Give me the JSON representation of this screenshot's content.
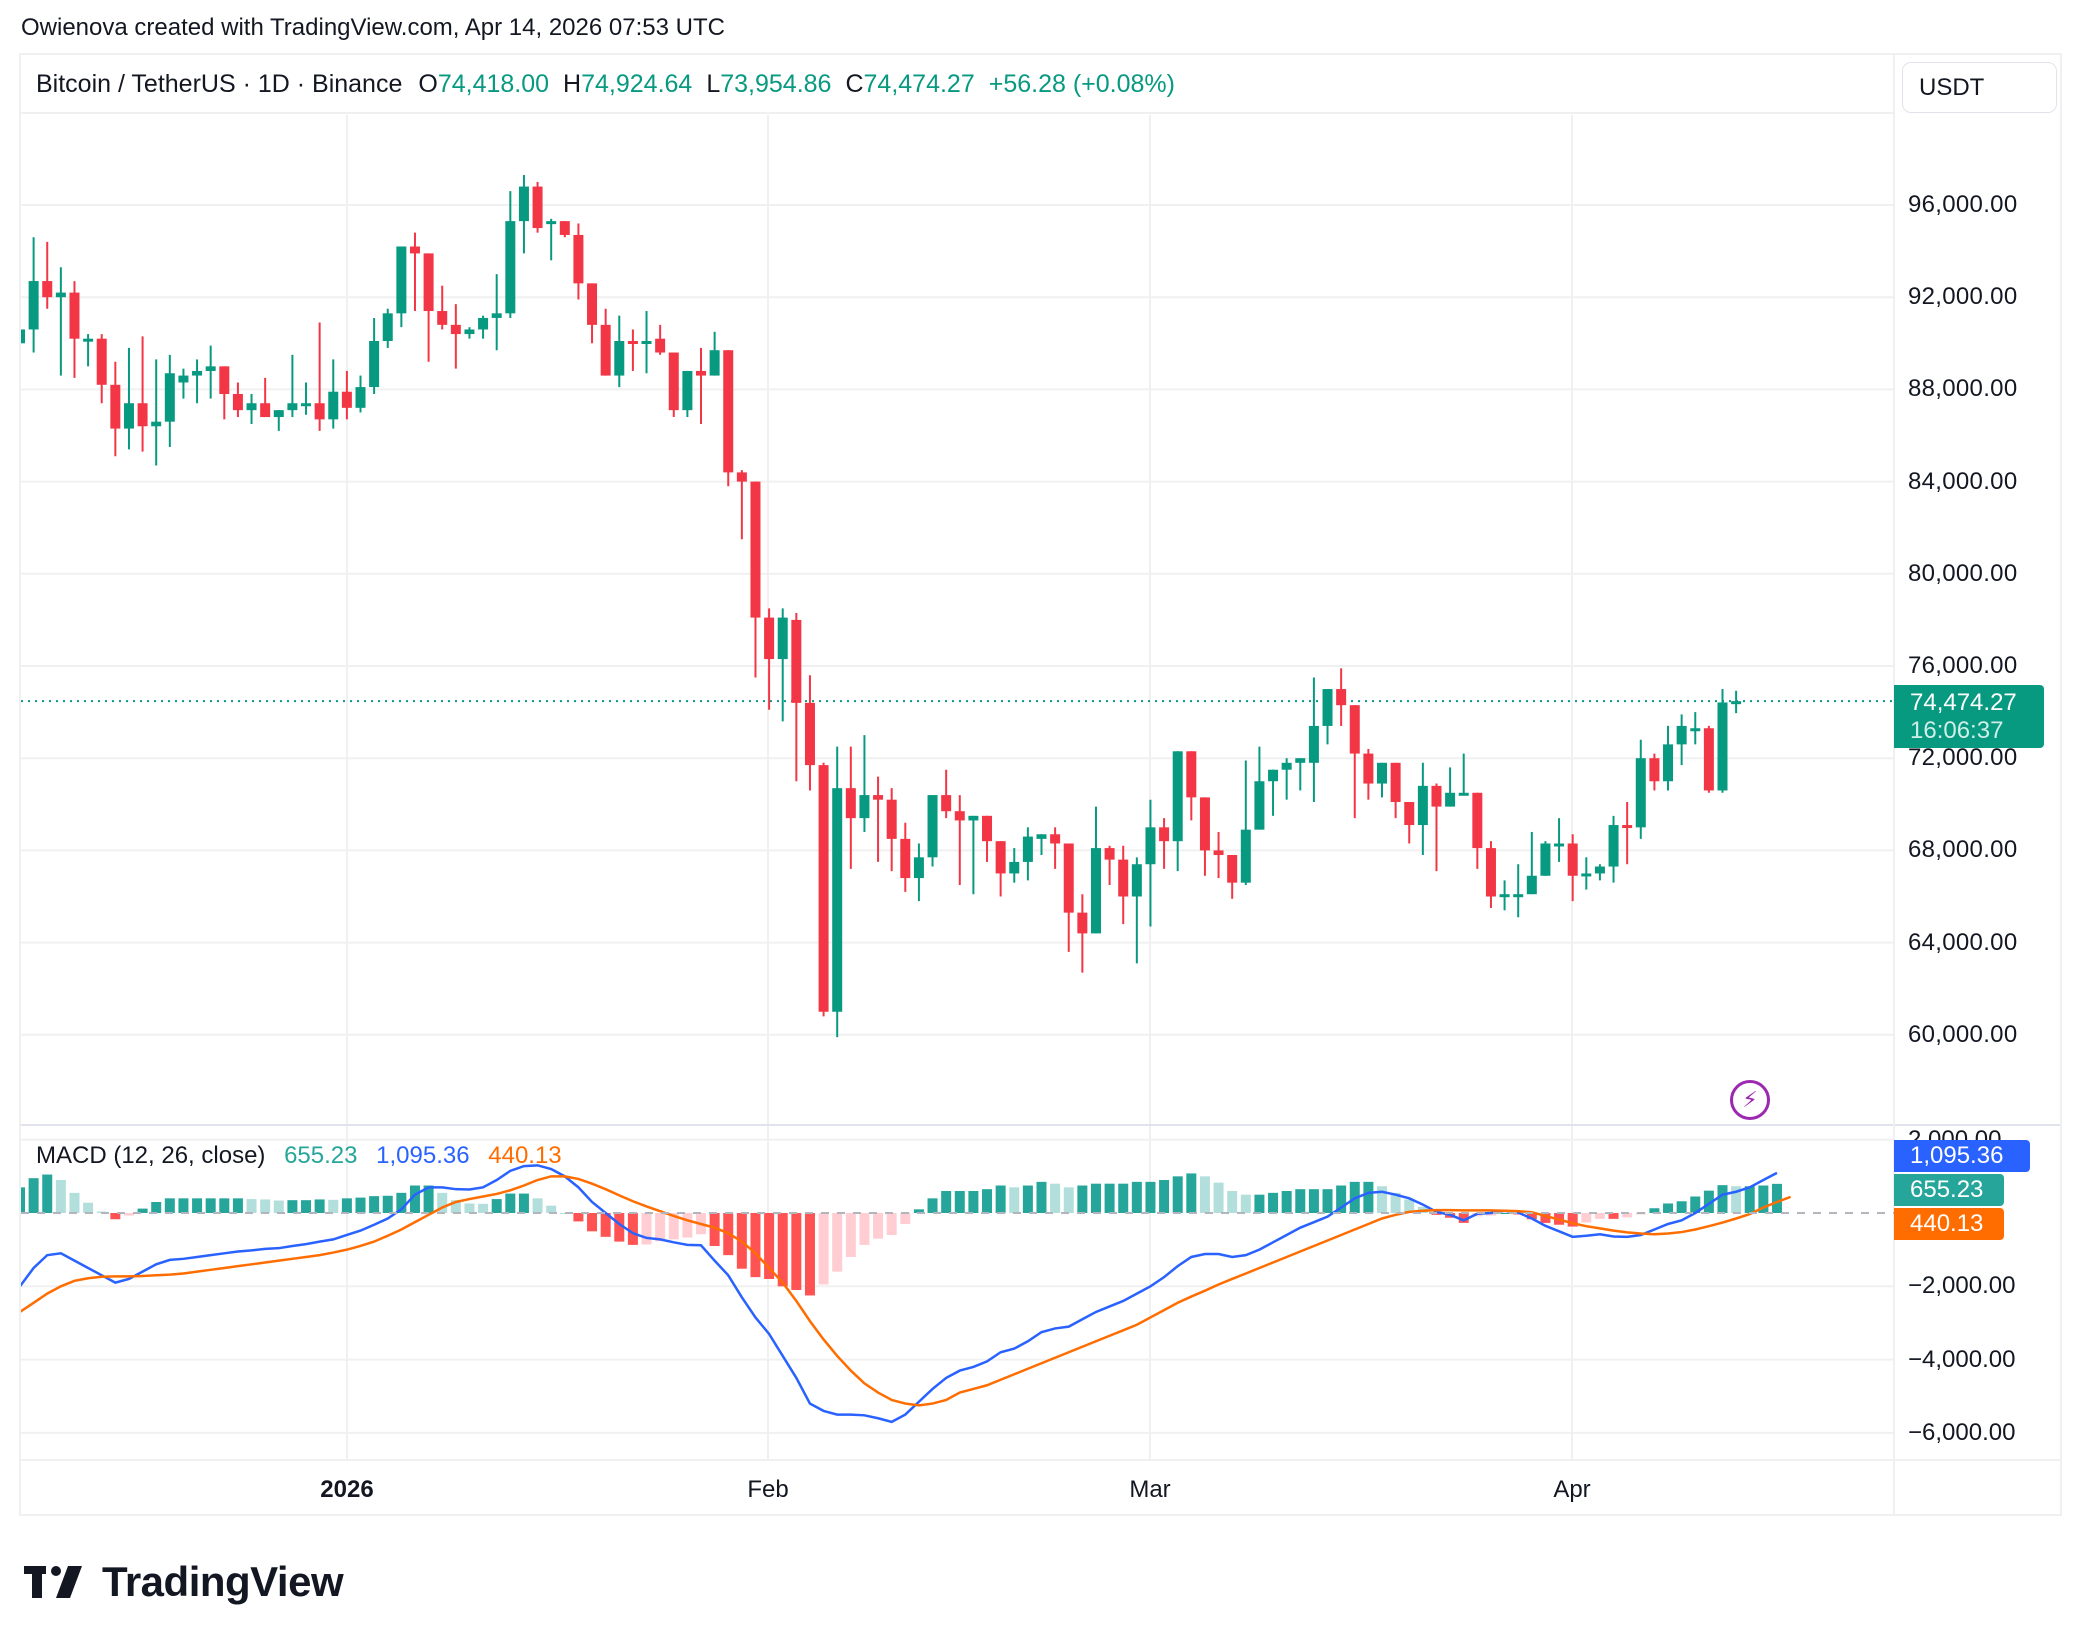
{
  "credit": "Owienova created with TradingView.com, Apr 14, 2026 07:53 UTC",
  "legend": {
    "symbol": "Bitcoin / TetherUS · 1D · Binance",
    "o_label": "O",
    "o": "74,418.00",
    "h_label": "H",
    "h": "74,924.64",
    "l_label": "L",
    "l": "73,954.86",
    "c_label": "C",
    "c": "74,474.27",
    "change": "+56.28 (+0.08%)"
  },
  "currency_button": "USDT",
  "price_axis": [
    "96,000.00",
    "92,000.00",
    "88,000.00",
    "84,000.00",
    "80,000.00",
    "76,000.00",
    "72,000.00",
    "68,000.00",
    "64,000.00",
    "60,000.00"
  ],
  "last_price": {
    "value": "74,474.27",
    "countdown": "16:06:37"
  },
  "macd": {
    "label": "MACD (12, 26, close)",
    "histogram": "655.23",
    "macd": "1,095.36",
    "signal": "440.13",
    "axis": [
      "2,000.00",
      "−2,000.00",
      "−4,000.00",
      "−6,000.00"
    ]
  },
  "time_axis": [
    {
      "label": "2026",
      "bold": true
    },
    {
      "label": "Feb",
      "bold": false
    },
    {
      "label": "Mar",
      "bold": false
    },
    {
      "label": "Apr",
      "bold": false
    }
  ],
  "brand": "TradingView",
  "colors": {
    "up": "#089981",
    "down": "#f23645",
    "hist_up_strong": "#26a69a",
    "hist_up_weak": "#b2dfdb",
    "hist_down_strong": "#ff5252",
    "hist_down_weak": "#ffcdd2",
    "macd_line": "#2962ff",
    "signal_line": "#ff6d00",
    "grid": "#f0f0f0",
    "accent_purple": "#9c27b0"
  },
  "chart_data": {
    "type": "candlestick",
    "title": "Bitcoin / TetherUS · 1D · Binance",
    "start_date": "2025-12-08",
    "end_date": "2026-04-14",
    "ylim": [
      56000,
      99500
    ],
    "yticks": [
      60000,
      64000,
      68000,
      72000,
      76000,
      80000,
      84000,
      88000,
      92000,
      96000
    ],
    "xticks": [
      {
        "label": "2026",
        "date": "2026-01-01"
      },
      {
        "label": "Feb",
        "date": "2026-02-01"
      },
      {
        "label": "Mar",
        "date": "2026-03-01"
      },
      {
        "label": "Apr",
        "date": "2026-04-01"
      }
    ],
    "ohlc": [
      [
        90000,
        92100,
        86500,
        90600
      ],
      [
        90600,
        94600,
        89600,
        92700
      ],
      [
        92700,
        94400,
        91500,
        92000
      ],
      [
        92000,
        93300,
        88600,
        92200
      ],
      [
        92200,
        92700,
        88500,
        90200
      ],
      [
        90200,
        90400,
        89000,
        90200
      ],
      [
        90200,
        90400,
        87400,
        88200
      ],
      [
        88200,
        89200,
        85100,
        86300
      ],
      [
        86300,
        89800,
        85400,
        87400
      ],
      [
        87400,
        90300,
        85300,
        86400
      ],
      [
        86400,
        89300,
        84700,
        86600
      ],
      [
        86600,
        89500,
        85500,
        88700
      ],
      [
        88300,
        88900,
        87600,
        88600
      ],
      [
        88600,
        89300,
        87400,
        88800
      ],
      [
        88800,
        89900,
        87600,
        89000
      ],
      [
        89000,
        88900,
        86700,
        87800
      ],
      [
        87800,
        88300,
        86800,
        87100
      ],
      [
        87100,
        87800,
        86500,
        87400
      ],
      [
        87400,
        88500,
        86800,
        86800
      ],
      [
        86800,
        87000,
        86200,
        87100
      ],
      [
        87100,
        89500,
        86800,
        87400
      ],
      [
        87400,
        88300,
        86900,
        87400
      ],
      [
        87400,
        90900,
        86200,
        86700
      ],
      [
        86700,
        89300,
        86300,
        87900
      ],
      [
        87900,
        88800,
        86700,
        87200
      ],
      [
        87200,
        88600,
        87000,
        88100
      ],
      [
        88100,
        91100,
        87800,
        90100
      ],
      [
        90100,
        91500,
        89800,
        91300
      ],
      [
        91300,
        93600,
        90700,
        94200
      ],
      [
        94200,
        94800,
        91400,
        93900
      ],
      [
        93900,
        93400,
        89200,
        91400
      ],
      [
        91400,
        92500,
        90600,
        90800
      ],
      [
        90800,
        91700,
        88900,
        90400
      ],
      [
        90400,
        90700,
        90200,
        90600
      ],
      [
        90600,
        91200,
        90200,
        91100
      ],
      [
        91100,
        93000,
        89700,
        91300
      ],
      [
        91300,
        96600,
        91100,
        95300
      ],
      [
        95300,
        97300,
        93900,
        96800
      ],
      [
        96800,
        97000,
        94800,
        95000
      ],
      [
        95300,
        95400,
        93600,
        95300
      ],
      [
        95300,
        95300,
        94600,
        94700
      ],
      [
        94700,
        95200,
        91900,
        92600
      ],
      [
        92600,
        92600,
        90000,
        90800
      ],
      [
        90800,
        91500,
        88600,
        88600
      ],
      [
        88600,
        91200,
        88100,
        90100
      ],
      [
        90100,
        90600,
        88800,
        90000
      ],
      [
        90000,
        91400,
        88700,
        90100
      ],
      [
        90200,
        90800,
        89500,
        89600
      ],
      [
        89600,
        89500,
        86800,
        87100
      ],
      [
        87100,
        88700,
        86800,
        88800
      ],
      [
        88800,
        89800,
        86500,
        88600
      ],
      [
        88600,
        90500,
        88600,
        89700
      ],
      [
        89700,
        89600,
        83800,
        84400
      ],
      [
        84400,
        84500,
        81500,
        84000
      ],
      [
        84000,
        84000,
        75500,
        78100
      ],
      [
        78100,
        78500,
        74100,
        76300
      ],
      [
        76300,
        78500,
        73600,
        78100
      ],
      [
        78000,
        78300,
        71000,
        74400
      ],
      [
        74400,
        75600,
        70600,
        71700
      ],
      [
        71700,
        71800,
        60800,
        61000
      ],
      [
        61000,
        72500,
        59900,
        70700
      ],
      [
        70700,
        72500,
        67200,
        69400
      ],
      [
        69400,
        73000,
        68800,
        70400
      ],
      [
        70400,
        71200,
        67500,
        70200
      ],
      [
        70200,
        70700,
        67100,
        68500
      ],
      [
        68500,
        69200,
        66200,
        66800
      ],
      [
        66800,
        68300,
        65800,
        67700
      ],
      [
        67700,
        70000,
        67300,
        70400
      ],
      [
        70400,
        71500,
        69400,
        69700
      ],
      [
        69700,
        70400,
        66500,
        69300
      ],
      [
        69300,
        69000,
        66100,
        69500
      ],
      [
        69500,
        69100,
        67500,
        68400
      ],
      [
        68400,
        67800,
        66000,
        67000
      ],
      [
        67000,
        68100,
        66600,
        67500
      ],
      [
        67500,
        69000,
        66700,
        68600
      ],
      [
        68500,
        68600,
        67800,
        68700
      ],
      [
        68700,
        69000,
        67200,
        68300
      ],
      [
        68300,
        68300,
        63600,
        65300
      ],
      [
        65300,
        66100,
        62700,
        64400
      ],
      [
        64400,
        69900,
        64500,
        68100
      ],
      [
        68100,
        68200,
        66500,
        67600
      ],
      [
        67600,
        68200,
        64800,
        66000
      ],
      [
        66000,
        67700,
        63100,
        67400
      ],
      [
        67400,
        70200,
        64700,
        69000
      ],
      [
        69000,
        69400,
        67200,
        68400
      ],
      [
        68400,
        72100,
        67100,
        72300
      ],
      [
        72300,
        71700,
        69300,
        70300
      ],
      [
        70300,
        70100,
        66900,
        68000
      ],
      [
        68000,
        68800,
        66800,
        67800
      ],
      [
        67800,
        67600,
        65900,
        66600
      ],
      [
        66600,
        71900,
        66500,
        68900
      ],
      [
        68900,
        72500,
        69600,
        71000
      ],
      [
        71000,
        71100,
        69500,
        71500
      ],
      [
        71500,
        72000,
        70200,
        71800
      ],
      [
        71800,
        71900,
        70600,
        72000
      ],
      [
        71800,
        75500,
        70100,
        73400
      ],
      [
        73400,
        74400,
        72600,
        75000
      ],
      [
        75000,
        75900,
        73400,
        74300
      ],
      [
        74300,
        72400,
        69400,
        72200
      ],
      [
        72200,
        72400,
        70200,
        70900
      ],
      [
        70900,
        71600,
        70300,
        71800
      ],
      [
        71800,
        71300,
        69400,
        70100
      ],
      [
        70100,
        69000,
        68300,
        69100
      ],
      [
        69100,
        71800,
        67800,
        70800
      ],
      [
        70800,
        70900,
        67100,
        69900
      ],
      [
        69900,
        71600,
        70300,
        70500
      ],
      [
        70500,
        72200,
        70400,
        70500
      ],
      [
        70500,
        70300,
        67200,
        68100
      ],
      [
        68100,
        68400,
        65500,
        66000
      ],
      [
        66000,
        66700,
        65400,
        66100
      ],
      [
        66100,
        67400,
        65100,
        66100
      ],
      [
        66100,
        68800,
        66200,
        66900
      ],
      [
        66900,
        68400,
        67800,
        68300
      ],
      [
        68300,
        69400,
        67500,
        68300
      ],
      [
        68300,
        68700,
        65800,
        66900
      ],
      [
        66900,
        67700,
        66300,
        67000
      ],
      [
        67000,
        67400,
        66700,
        67300
      ],
      [
        67300,
        69500,
        66600,
        69100
      ],
      [
        69100,
        70100,
        67400,
        69000
      ],
      [
        69000,
        72800,
        68500,
        72000
      ],
      [
        72000,
        72200,
        70600,
        71000
      ],
      [
        71000,
        73400,
        70600,
        72600
      ],
      [
        72600,
        73900,
        71700,
        73400
      ],
      [
        73300,
        74000,
        72600,
        73300
      ],
      [
        73300,
        73400,
        70500,
        70600
      ],
      [
        70600,
        75000,
        70500,
        74418
      ],
      [
        74418,
        74925,
        73955,
        74474
      ]
    ],
    "macd_series": {
      "start_index": 0,
      "macd_line": [
        -2000,
        -1500,
        -1150,
        -1100,
        -1300,
        -1500,
        -1700,
        -1900,
        -1800,
        -1600,
        -1400,
        -1280,
        -1250,
        -1200,
        -1150,
        -1100,
        -1050,
        -1020,
        -980,
        -960,
        -900,
        -850,
        -780,
        -720,
        -600,
        -480,
        -320,
        -150,
        100,
        500,
        700,
        700,
        650,
        640,
        700,
        900,
        1150,
        1280,
        1300,
        1200,
        1000,
        700,
        300,
        0,
        -300,
        -550,
        -680,
        -720,
        -800,
        -870,
        -880,
        -1300,
        -1700,
        -2300,
        -2850,
        -3300,
        -3900,
        -4500,
        -5200,
        -5400,
        -5500,
        -5500,
        -5520,
        -5600,
        -5700,
        -5500,
        -5150,
        -4800,
        -4500,
        -4300,
        -4200,
        -4050,
        -3800,
        -3700,
        -3500,
        -3250,
        -3150,
        -3100,
        -2900,
        -2700,
        -2550,
        -2400,
        -2200,
        -2000,
        -1750,
        -1450,
        -1200,
        -1120,
        -1120,
        -1200,
        -1150,
        -1000,
        -800,
        -600,
        -400,
        -250,
        -100,
        150,
        400,
        550,
        580,
        500,
        400,
        230,
        30,
        -50,
        -200,
        -20,
        0,
        60,
        10,
        -150,
        -350,
        -500,
        -650,
        -620,
        -580,
        -640,
        -650,
        -600,
        -450,
        -300,
        -200,
        0,
        250,
        500,
        580,
        700,
        900,
        1095
      ],
      "signal_line": [
        -2700,
        -2450,
        -2200,
        -2000,
        -1850,
        -1780,
        -1740,
        -1730,
        -1730,
        -1720,
        -1700,
        -1680,
        -1650,
        -1600,
        -1550,
        -1500,
        -1450,
        -1400,
        -1350,
        -1300,
        -1250,
        -1200,
        -1150,
        -1080,
        -1000,
        -900,
        -780,
        -620,
        -450,
        -250,
        -50,
        150,
        300,
        380,
        450,
        520,
        620,
        750,
        900,
        1000,
        1000,
        930,
        800,
        650,
        480,
        320,
        180,
        50,
        -80,
        -200,
        -300,
        -400,
        -550,
        -780,
        -1100,
        -1500,
        -1900,
        -2400,
        -2950,
        -3450,
        -3900,
        -4300,
        -4650,
        -4900,
        -5100,
        -5200,
        -5250,
        -5200,
        -5100,
        -4900,
        -4800,
        -4700,
        -4550,
        -4400,
        -4250,
        -4100,
        -3950,
        -3800,
        -3650,
        -3500,
        -3350,
        -3200,
        -3050,
        -2850,
        -2650,
        -2450,
        -2280,
        -2120,
        -1950,
        -1800,
        -1650,
        -1500,
        -1350,
        -1200,
        -1050,
        -900,
        -750,
        -600,
        -450,
        -300,
        -150,
        -50,
        30,
        60,
        80,
        80,
        70,
        70,
        70,
        60,
        50,
        20,
        -80,
        -180,
        -280,
        -360,
        -420,
        -480,
        -530,
        -560,
        -580,
        -560,
        -520,
        -450,
        -360,
        -260,
        -150,
        -30,
        150,
        300,
        440
      ]
    }
  }
}
